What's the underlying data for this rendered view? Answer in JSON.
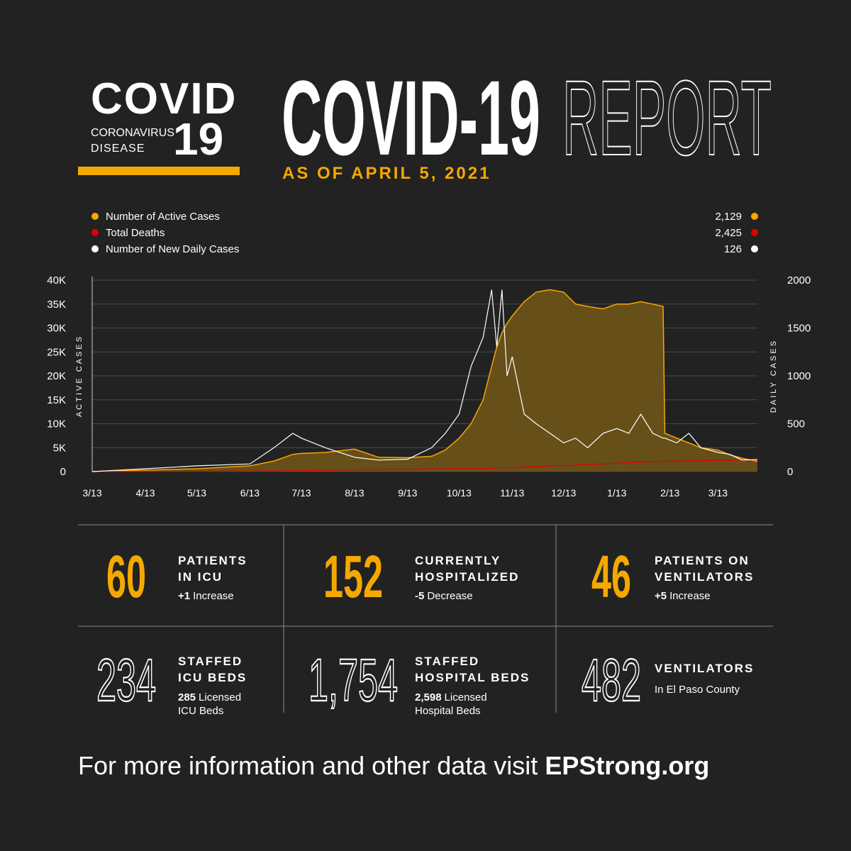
{
  "header": {
    "logo_word": "COVID",
    "logo_line1": "CORONAVIRUS",
    "logo_line2": "DISEASE",
    "logo_number": "19",
    "title_bold": "COVID-19",
    "title_outline": "REPORT",
    "date": "AS OF APRIL 5, 2021"
  },
  "chart_data": {
    "type": "line",
    "ylabel": "ACTIVE CASES",
    "y2label": "DAILY CASES",
    "x": [
      "3/13",
      "4/13",
      "5/13",
      "6/13",
      "6/27",
      "7/8",
      "7/13",
      "7/27",
      "8/13",
      "8/27",
      "9/13",
      "9/27",
      "10/5",
      "10/13",
      "10/20",
      "10/27",
      "11/1",
      "11/4",
      "11/7",
      "11/10",
      "11/13",
      "11/20",
      "11/27",
      "12/5",
      "12/13",
      "12/20",
      "12/27",
      "1/5",
      "1/13",
      "1/20",
      "1/27",
      "2/3",
      "2/9",
      "2/10",
      "2/17",
      "2/24",
      "3/3",
      "3/13",
      "3/20",
      "3/27",
      "4/5"
    ],
    "series": [
      {
        "name": "Number of Active Cases",
        "color": "#f5a800",
        "fill": "#6b5219",
        "legend_value": "2,129",
        "values": [
          0,
          300,
          600,
          1200,
          2200,
          3600,
          3800,
          4000,
          4700,
          3000,
          2900,
          3200,
          4500,
          7000,
          10000,
          15000,
          22000,
          26000,
          29000,
          31000,
          32500,
          35500,
          37500,
          38000,
          37500,
          35000,
          34500,
          34000,
          35000,
          35000,
          35500,
          35000,
          34500,
          8000,
          7000,
          6000,
          5000,
          4500,
          3500,
          2800,
          2129
        ]
      },
      {
        "name": "Total Deaths",
        "color": "#e00000",
        "legend_value": "2,425",
        "values": [
          0,
          20,
          60,
          100,
          140,
          180,
          200,
          300,
          400,
          450,
          500,
          550,
          580,
          600,
          620,
          660,
          700,
          750,
          780,
          820,
          860,
          950,
          1050,
          1150,
          1250,
          1380,
          1500,
          1620,
          1750,
          1900,
          2000,
          2100,
          2150,
          2160,
          2200,
          2250,
          2300,
          2350,
          2380,
          2400,
          2425
        ]
      },
      {
        "name": "Number of New Daily Cases",
        "color": "#ffffff",
        "axis": "y2",
        "legend_value": "126",
        "values": [
          0,
          30,
          60,
          80,
          250,
          400,
          350,
          250,
          150,
          120,
          130,
          250,
          400,
          600,
          1100,
          1400,
          1900,
          1300,
          1900,
          1000,
          1200,
          600,
          500,
          400,
          300,
          350,
          250,
          400,
          450,
          400,
          600,
          400,
          350,
          350,
          300,
          400,
          250,
          200,
          180,
          120,
          126
        ]
      }
    ],
    "xticks": [
      "3/13",
      "4/13",
      "5/13",
      "6/13",
      "7/13",
      "8/13",
      "9/13",
      "10/13",
      "11/13",
      "12/13",
      "1/13",
      "2/13",
      "3/13"
    ],
    "ylim": [
      0,
      40000
    ],
    "yticks": [
      0,
      {
        "value": 5000,
        "label": "5K"
      },
      {
        "value": 10000,
        "label": "10K"
      },
      {
        "value": 15000,
        "label": "15K"
      },
      {
        "value": 20000,
        "label": "20K"
      },
      {
        "value": 25000,
        "label": "25K"
      },
      {
        "value": 30000,
        "label": "30K"
      },
      {
        "value": 35000,
        "label": "35K"
      },
      {
        "value": 40000,
        "label": "40K"
      }
    ],
    "y2lim": [
      0,
      2000
    ],
    "y2ticks": [
      0,
      500,
      1000,
      1500,
      2000
    ],
    "grid": true
  },
  "stats": [
    {
      "value": "60",
      "label": [
        "PATIENTS",
        "IN ICU"
      ],
      "note_bold": "+1",
      "note": [
        "Increase"
      ],
      "style": "filled"
    },
    {
      "value": "152",
      "label": [
        "CURRENTLY",
        "HOSPITALIZED"
      ],
      "note_bold": "-5",
      "note": [
        "Decrease"
      ],
      "style": "filled"
    },
    {
      "value": "46",
      "label": [
        "PATIENTS ON",
        "VENTILATORS"
      ],
      "note_bold": "+5",
      "note": [
        "Increase"
      ],
      "style": "filled"
    },
    {
      "value": "234",
      "label": [
        "STAFFED",
        "ICU BEDS"
      ],
      "note_bold": "285",
      "note": [
        "Licensed",
        "ICU Beds"
      ],
      "style": "outline"
    },
    {
      "value": "1,754",
      "label": [
        "STAFFED",
        "HOSPITAL BEDS"
      ],
      "note_bold": "2,598",
      "note": [
        "Licensed",
        "Hospital Beds"
      ],
      "style": "outline"
    },
    {
      "value": "482",
      "label": [
        "VENTILATORS"
      ],
      "note": [
        "In El Paso County"
      ],
      "style": "outline"
    }
  ],
  "footer": {
    "text": "For more information and other data visit",
    "link": "EPStrong.org"
  }
}
